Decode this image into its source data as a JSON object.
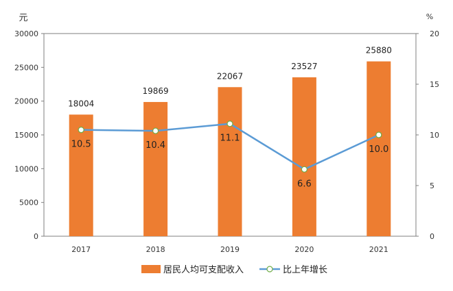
{
  "chart_data": {
    "type": "bar+line",
    "categories": [
      "2017",
      "2018",
      "2019",
      "2020",
      "2021"
    ],
    "left_axis": {
      "unit_label": "元",
      "ylim": [
        0,
        30000
      ],
      "ticks": [
        "0",
        "5000",
        "10000",
        "15000",
        "20000",
        "25000",
        "30000"
      ]
    },
    "right_axis": {
      "unit_label": "%",
      "ylim": [
        0,
        20
      ],
      "ticks": [
        "0",
        "5",
        "10",
        "15",
        "20"
      ]
    },
    "series": [
      {
        "name": "居民人均可支配收入",
        "type": "bar",
        "axis": "left",
        "color": "#ED7D31",
        "values": [
          18004,
          19869,
          22067,
          23527,
          25880
        ],
        "labels": [
          "18004",
          "19869",
          "22067",
          "23527",
          "25880"
        ]
      },
      {
        "name": "比上年增长",
        "type": "line",
        "axis": "right",
        "color": "#5B9BD5",
        "marker_fill": "#ffffff",
        "marker_stroke": "#70AD47",
        "values": [
          10.5,
          10.4,
          11.1,
          6.6,
          10.0
        ],
        "labels": [
          "10.5",
          "10.4",
          "11.1",
          "6.6",
          "10.0"
        ]
      }
    ],
    "grid": false,
    "legend_position": "bottom"
  }
}
